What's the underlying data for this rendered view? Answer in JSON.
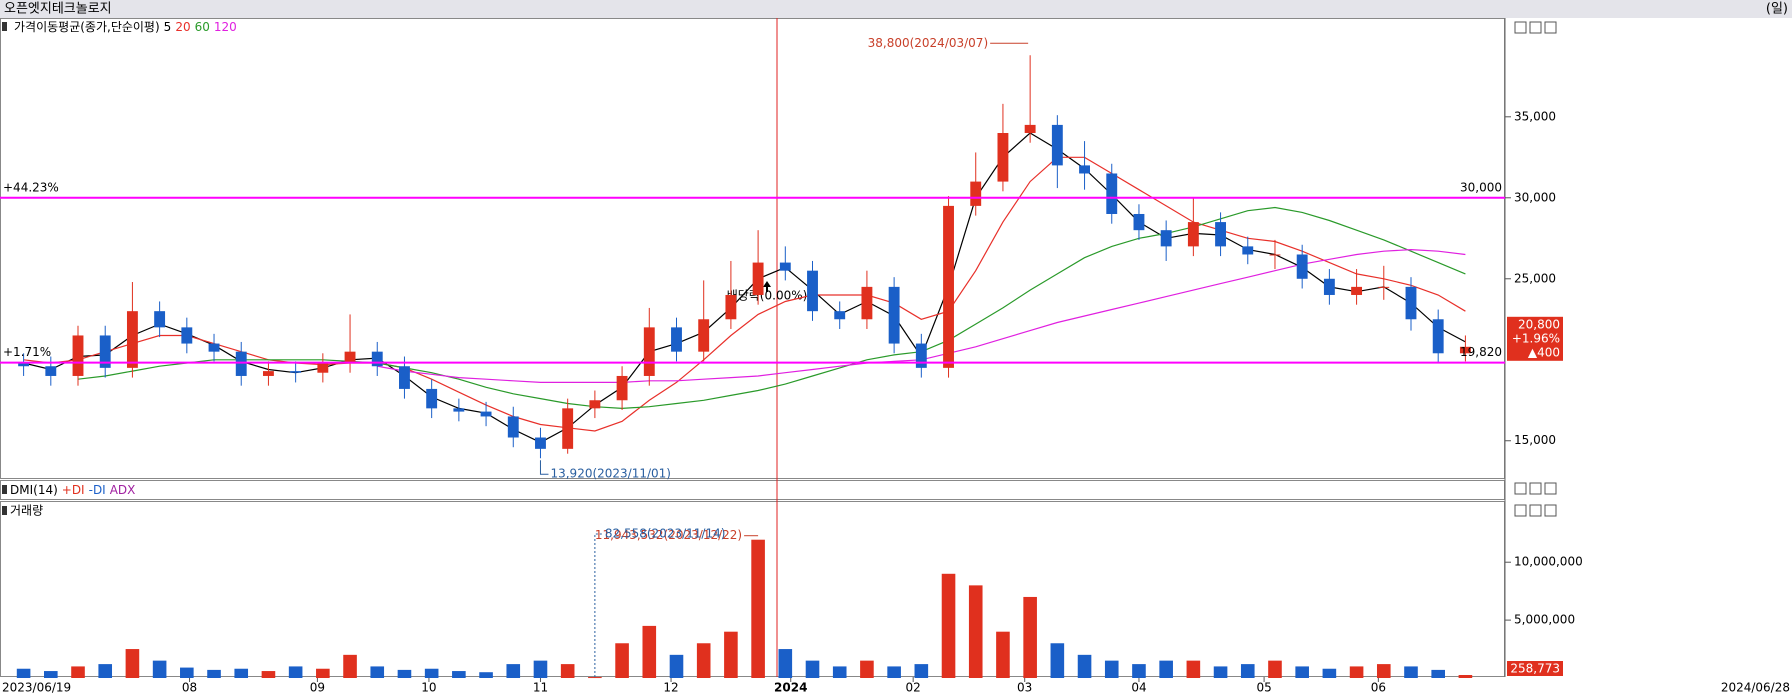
{
  "header": {
    "title": "오픈엣지테크놀로지",
    "period": "(일)"
  },
  "chart_data": [
    {
      "type": "candlestick",
      "legend_title": "가격이동평균(종가,단순이평)",
      "open": [
        19800,
        19600,
        19000,
        21500,
        19500,
        23000,
        22000,
        21000,
        20500,
        19000,
        19300,
        19200,
        19800,
        20500,
        19600,
        18200,
        17000,
        16800,
        16500,
        15200,
        14500,
        17000,
        17500,
        19000,
        22000,
        20500,
        22500,
        24000,
        26000,
        25500,
        23000,
        22500,
        24500,
        21000,
        19500,
        29500,
        31000,
        34000,
        34500,
        32000,
        31500,
        29000,
        28000,
        27000,
        28500,
        27000,
        26500,
        26500,
        25000,
        24000,
        24500,
        24500,
        22500,
        20400
      ],
      "high": [
        20400,
        20200,
        22100,
        22100,
        24800,
        23600,
        22600,
        21600,
        21100,
        19900,
        19900,
        20400,
        22800,
        21100,
        20200,
        18800,
        17600,
        17400,
        17100,
        15800,
        17600,
        18100,
        19600,
        23200,
        22600,
        24900,
        26100,
        28000,
        27000,
        26100,
        23600,
        25500,
        25100,
        21600,
        30100,
        32800,
        35800,
        38800,
        35100,
        33500,
        32100,
        29600,
        28600,
        30000,
        29100,
        27600,
        27400,
        27100,
        25600,
        25600,
        25800,
        25100,
        23100,
        21500
      ],
      "low": [
        19000,
        18400,
        18400,
        18900,
        18900,
        21400,
        20400,
        19900,
        18400,
        18400,
        18600,
        18600,
        19200,
        19000,
        17600,
        16400,
        16200,
        15900,
        14600,
        13920,
        14200,
        16400,
        16900,
        18400,
        19900,
        19900,
        21900,
        23400,
        24900,
        22400,
        21900,
        21900,
        20400,
        18900,
        18900,
        28900,
        30400,
        33400,
        30600,
        30500,
        28400,
        27400,
        26100,
        26400,
        26400,
        25900,
        25600,
        24400,
        23400,
        23400,
        23700,
        21800,
        19800,
        19900
      ],
      "close": [
        19600,
        19000,
        21500,
        19500,
        23000,
        22000,
        21000,
        20500,
        19000,
        19300,
        19200,
        19800,
        20500,
        19600,
        18200,
        17000,
        16800,
        16500,
        15200,
        14500,
        17000,
        17500,
        19000,
        22000,
        20500,
        22500,
        24000,
        26000,
        25500,
        23000,
        22500,
        24500,
        21000,
        19500,
        29500,
        31000,
        34000,
        34500,
        32000,
        31500,
        29000,
        28000,
        27000,
        28500,
        27000,
        26500,
        26500,
        25000,
        24000,
        24500,
        24500,
        22500,
        20400,
        20800
      ],
      "up_color": "#e0301e",
      "down_color": "#1a5fc8",
      "series": [
        {
          "name": "5",
          "color": "#000000",
          "values": [
            19800,
            19400,
            20200,
            20300,
            21500,
            22200,
            21600,
            20900,
            19900,
            19400,
            19200,
            19500,
            20000,
            20100,
            19000,
            17700,
            17000,
            16700,
            15700,
            14900,
            15800,
            17200,
            18300,
            20500,
            21000,
            21700,
            23200,
            25000,
            25700,
            24300,
            22800,
            23600,
            22700,
            20200,
            24500,
            30000,
            32500,
            34000,
            33000,
            31800,
            30200,
            28500,
            27500,
            27800,
            27700,
            26800,
            26500,
            25700,
            24500,
            24200,
            24500,
            23500,
            22000,
            21100
          ]
        },
        {
          "name": "20",
          "color": "#e8302a",
          "values": [
            20000,
            19800,
            20000,
            20500,
            21000,
            21500,
            21500,
            21000,
            20500,
            20000,
            19800,
            19700,
            19800,
            19800,
            19500,
            18800,
            18000,
            17200,
            16500,
            16000,
            15800,
            15600,
            16200,
            17500,
            18600,
            20000,
            21500,
            22800,
            23600,
            24000,
            24000,
            24000,
            23500,
            22500,
            23000,
            25500,
            28500,
            31000,
            32500,
            32500,
            31500,
            30500,
            29500,
            28500,
            28000,
            27500,
            27300,
            26700,
            26000,
            25300,
            25000,
            24600,
            24000,
            23000
          ]
        },
        {
          "name": "60",
          "color": "#2a9a2a",
          "values": [
            null,
            null,
            18800,
            19000,
            19300,
            19600,
            19800,
            20000,
            20000,
            20000,
            20000,
            20000,
            19900,
            19800,
            19500,
            19200,
            18800,
            18300,
            17900,
            17600,
            17300,
            17100,
            17000,
            17100,
            17300,
            17500,
            17800,
            18100,
            18500,
            19000,
            19500,
            20000,
            20300,
            20500,
            21200,
            22200,
            23200,
            24300,
            25300,
            26300,
            27000,
            27500,
            27800,
            28200,
            28700,
            29200,
            29400,
            29100,
            28600,
            28000,
            27400,
            26700,
            26000,
            25300
          ]
        },
        {
          "name": "120",
          "color": "#e020e0",
          "values": [
            null,
            null,
            null,
            null,
            null,
            null,
            null,
            null,
            null,
            null,
            null,
            null,
            null,
            19600,
            19300,
            19100,
            18900,
            18800,
            18700,
            18600,
            18600,
            18600,
            18600,
            18700,
            18700,
            18800,
            18900,
            19000,
            19200,
            19400,
            19600,
            19800,
            19900,
            20000,
            20400,
            20800,
            21300,
            21800,
            22300,
            22700,
            23100,
            23500,
            23900,
            24300,
            24700,
            25100,
            25500,
            25900,
            26200,
            26500,
            26700,
            26800,
            26700,
            26500
          ]
        }
      ],
      "ylim": [
        12700,
        41100
      ],
      "yticks": [
        {
          "value": 15000,
          "label": "15,000"
        },
        {
          "value": 25000,
          "label": "25,000"
        },
        {
          "value": 30000,
          "label": "30,000"
        },
        {
          "value": 35000,
          "label": "35,000"
        }
      ],
      "xlim": [
        0,
        54
      ],
      "xticks": [
        {
          "value": 6.6,
          "label": "08"
        },
        {
          "value": 11.3,
          "label": "09"
        },
        {
          "value": 15.4,
          "label": "10"
        },
        {
          "value": 19.5,
          "label": "11"
        },
        {
          "value": 24.3,
          "label": "12"
        },
        {
          "value": 28.7,
          "label": "2024"
        },
        {
          "value": 33.2,
          "label": "02"
        },
        {
          "value": 37.3,
          "label": "03"
        },
        {
          "value": 41.5,
          "label": "04"
        },
        {
          "value": 46.1,
          "label": "05"
        },
        {
          "value": 50.3,
          "label": "06"
        }
      ],
      "start_date": "2023/06/19",
      "end_date": "2024/06/28",
      "hline_color": "#ff00ff",
      "hlines": [
        {
          "value": 30000,
          "label": "30,000",
          "change": "+44.23%"
        },
        {
          "value": 19820,
          "label": "19,820",
          "change": "+1.71%"
        }
      ],
      "annotations": [
        {
          "value": 38800,
          "label": "38,800(2024/03/07)",
          "color": "#c8402a"
        },
        {
          "value": 13920,
          "label": "13,920(2023/11/01)",
          "color": "#2a5fa0"
        }
      ],
      "event": "배당락(0.00%)",
      "last": {
        "label": "20,800",
        "change": "+1.96%",
        "diff": "▲400"
      }
    },
    {
      "type": "indicator",
      "title": "DMI(14)",
      "series": [
        {
          "name": "+DI",
          "color": "#e0301e"
        },
        {
          "name": "-DI",
          "color": "#1a5fc8"
        },
        {
          "name": "ADX",
          "color": "#a020a0"
        }
      ]
    },
    {
      "type": "bar",
      "title": "거래량",
      "values": [
        800000,
        600000,
        1000000,
        1200000,
        2500000,
        1500000,
        900000,
        700000,
        800000,
        600000,
        1000000,
        800000,
        2000000,
        1000000,
        700000,
        800000,
        600000,
        500000,
        1200000,
        1500000,
        1200000,
        82558,
        3000000,
        4500000,
        2000000,
        3000000,
        4000000,
        11943532,
        2500000,
        1500000,
        1000000,
        1500000,
        1000000,
        1200000,
        9000000,
        8000000,
        4000000,
        7000000,
        3000000,
        2000000,
        1500000,
        1200000,
        1500000,
        1500000,
        1000000,
        1200000,
        1500000,
        1000000,
        800000,
        1000000,
        1200000,
        1000000,
        700000,
        258773
      ],
      "value_labels": [
        null,
        null,
        null,
        null,
        null,
        null,
        null,
        null,
        null,
        null,
        null,
        null,
        null,
        null,
        null,
        null,
        null,
        null,
        null,
        null,
        null,
        null,
        null,
        null,
        null,
        null,
        null,
        null,
        null,
        null,
        null,
        null,
        null,
        null,
        null,
        null,
        null,
        null,
        null,
        null,
        null,
        null,
        null,
        null,
        null,
        null,
        null,
        null,
        null,
        null,
        null,
        null,
        null,
        "258,773"
      ],
      "ylim": [
        0,
        15200000
      ],
      "yticks": [
        {
          "value": 5000000,
          "label": "5,000,000"
        },
        {
          "value": 10000000,
          "label": "10,000,000"
        }
      ],
      "annotations": [
        {
          "value": 11943532,
          "label": "11,943,532(2023/12/22)",
          "color": "#c8402a"
        },
        {
          "value": 82558,
          "label": "82,558(2023/11/14)",
          "color": "#2a5fa0"
        }
      ]
    }
  ]
}
